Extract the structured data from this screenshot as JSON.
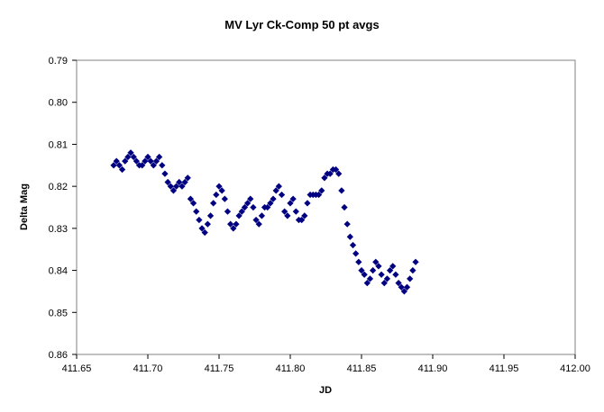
{
  "chart_data": {
    "type": "scatter",
    "title": "MV Lyr Ck-Comp 50 pt avgs",
    "xlabel": "JD",
    "ylabel": "Delta Mag",
    "xlim": [
      411.65,
      412.0
    ],
    "ylim": [
      0.79,
      0.86
    ],
    "y_reversed": true,
    "grid": false,
    "legend": "none",
    "x_ticks": [
      "411.65",
      "411.70",
      "411.75",
      "411.80",
      "411.85",
      "411.90",
      "411.95",
      "412.00"
    ],
    "y_ticks": [
      "0.79",
      "0.80",
      "0.81",
      "0.82",
      "0.83",
      "0.84",
      "0.85",
      "0.86"
    ],
    "marker": "diamond",
    "color": "#000080",
    "series": [
      {
        "x": [
          411.676,
          411.678,
          411.68,
          411.682,
          411.684,
          411.686,
          411.688,
          411.69,
          411.692,
          411.694,
          411.696,
          411.698,
          411.7,
          411.702,
          411.704,
          411.706,
          411.708,
          411.71,
          411.712,
          411.714,
          411.716,
          411.718,
          411.72,
          411.722,
          411.724,
          411.726,
          411.728,
          411.73,
          411.732,
          411.734,
          411.736,
          411.738,
          411.74,
          411.742,
          411.744,
          411.746,
          411.748,
          411.75,
          411.752,
          411.754,
          411.756,
          411.758,
          411.76,
          411.762,
          411.764,
          411.766,
          411.768,
          411.77,
          411.772,
          411.774,
          411.776,
          411.778,
          411.78,
          411.782,
          411.784,
          411.786,
          411.788,
          411.79,
          411.792,
          411.794,
          411.796,
          411.798,
          411.8,
          411.802,
          411.804,
          411.806,
          411.808,
          411.81,
          411.812,
          411.814,
          411.816,
          411.818,
          411.82,
          411.822,
          411.824,
          411.826,
          411.828,
          411.83,
          411.832,
          411.834,
          411.836,
          411.838,
          411.84,
          411.842,
          411.844,
          411.846,
          411.848,
          411.85,
          411.852,
          411.854,
          411.856,
          411.858,
          411.86,
          411.862,
          411.864,
          411.866,
          411.868,
          411.87,
          411.872,
          411.874,
          411.876,
          411.878,
          411.88,
          411.882,
          411.884,
          411.886,
          411.888
        ],
        "y": [
          0.815,
          0.814,
          0.815,
          0.816,
          0.814,
          0.813,
          0.812,
          0.813,
          0.814,
          0.815,
          0.815,
          0.814,
          0.813,
          0.814,
          0.815,
          0.814,
          0.813,
          0.815,
          0.817,
          0.819,
          0.82,
          0.821,
          0.82,
          0.819,
          0.82,
          0.819,
          0.818,
          0.823,
          0.824,
          0.826,
          0.828,
          0.83,
          0.831,
          0.829,
          0.827,
          0.824,
          0.822,
          0.82,
          0.821,
          0.823,
          0.826,
          0.829,
          0.83,
          0.829,
          0.827,
          0.826,
          0.825,
          0.824,
          0.823,
          0.825,
          0.828,
          0.829,
          0.827,
          0.825,
          0.825,
          0.824,
          0.823,
          0.821,
          0.82,
          0.822,
          0.826,
          0.827,
          0.824,
          0.823,
          0.826,
          0.828,
          0.828,
          0.827,
          0.824,
          0.822,
          0.822,
          0.822,
          0.822,
          0.821,
          0.818,
          0.817,
          0.817,
          0.816,
          0.816,
          0.817,
          0.821,
          0.825,
          0.829,
          0.832,
          0.834,
          0.836,
          0.838,
          0.84,
          0.841,
          0.843,
          0.842,
          0.84,
          0.838,
          0.839,
          0.841,
          0.843,
          0.842,
          0.84,
          0.839,
          0.841,
          0.843,
          0.844,
          0.845,
          0.844,
          0.842,
          0.84,
          0.838
        ]
      }
    ]
  }
}
